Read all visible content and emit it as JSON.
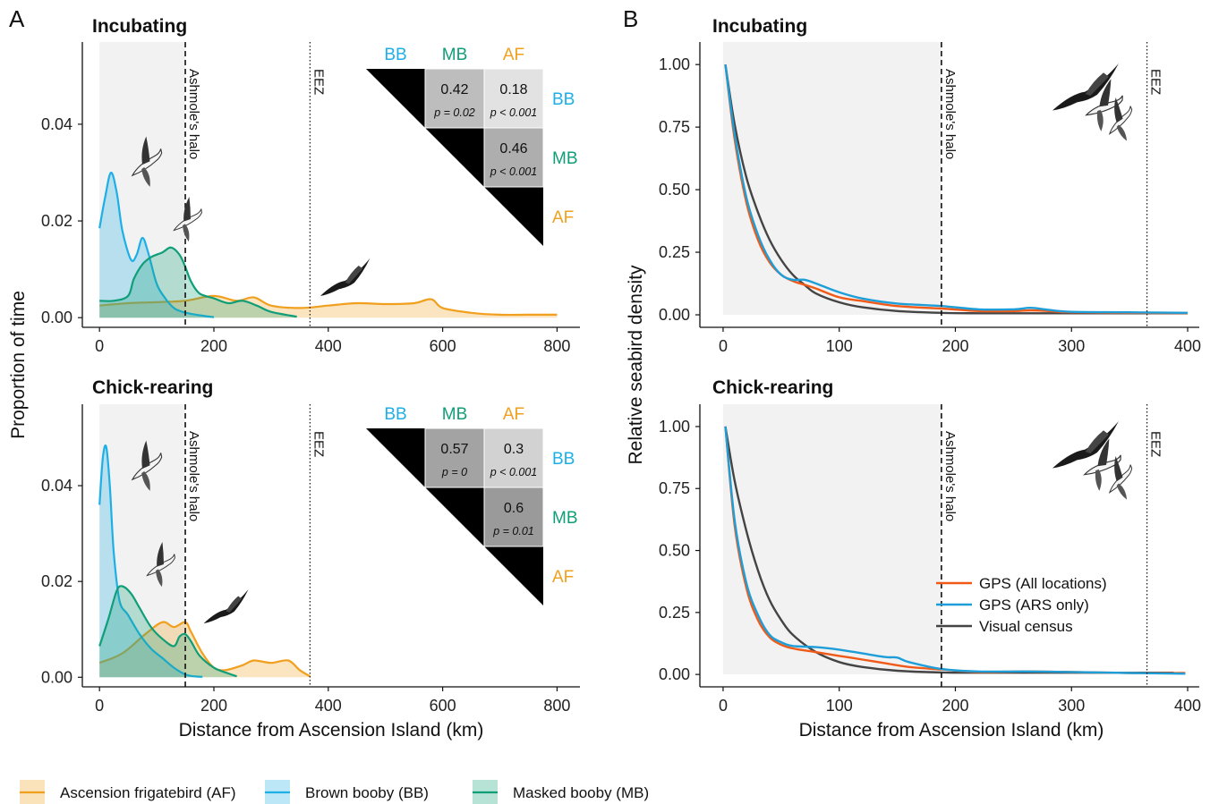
{
  "panel_labels": [
    "A",
    "B"
  ],
  "colors": {
    "AF": "#F0A01E",
    "BB": "#1EAFE6",
    "MB": "#109E78",
    "GPS_all": "#F05A18",
    "GPS_ars": "#1E9ED8",
    "visual": "#444444",
    "shade": "#F2F2F2"
  },
  "legend_bottom": [
    {
      "key": "AF",
      "label": "Ascension frigatebird (AF)"
    },
    {
      "key": "BB",
      "label": "Brown booby (BB)"
    },
    {
      "key": "MB",
      "label": "Masked booby (MB)"
    }
  ],
  "legend_B": [
    {
      "key": "GPS_all",
      "label": "GPS (All locations)"
    },
    {
      "key": "GPS_ars",
      "label": "GPS (ARS only)"
    },
    {
      "key": "visual",
      "label": "Visual census"
    }
  ],
  "chart_data": [
    {
      "id": "A_incubating",
      "type": "area",
      "title": "Incubating",
      "xlabel": "Distance from Ascension Island (km)",
      "ylabel": "Proportion of time",
      "xlim": [
        -30,
        840
      ],
      "ylim": [
        -0.002,
        0.057
      ],
      "xticks": [
        0,
        200,
        400,
        600,
        800
      ],
      "yticks": [
        0,
        0.02,
        0.04
      ],
      "ytick_labels": [
        "0.00",
        "0.02",
        "0.04"
      ],
      "shade": [
        0,
        150
      ],
      "vlines": [
        {
          "x": 150,
          "style": "dashed",
          "label": "Ashmole's halo"
        },
        {
          "x": 368,
          "style": "dotted",
          "label": "EEZ"
        }
      ],
      "series": [
        {
          "key": "AF",
          "name": "Ascension frigatebird (AF)",
          "x": [
            0,
            50,
            100,
            150,
            200,
            240,
            270,
            300,
            350,
            400,
            450,
            500,
            550,
            580,
            600,
            650,
            700,
            750,
            800
          ],
          "y": [
            0.0025,
            0.003,
            0.0032,
            0.0035,
            0.0045,
            0.0035,
            0.0042,
            0.0025,
            0.002,
            0.0025,
            0.003,
            0.0028,
            0.003,
            0.0038,
            0.002,
            0.001,
            0.0006,
            0.0006,
            0.0006
          ]
        },
        {
          "key": "BB",
          "name": "Brown booby (BB)",
          "x": [
            0,
            10,
            20,
            30,
            40,
            55,
            65,
            75,
            85,
            100,
            115,
            130,
            145,
            160,
            180,
            200
          ],
          "y": [
            0.0185,
            0.025,
            0.03,
            0.026,
            0.018,
            0.012,
            0.013,
            0.0165,
            0.0135,
            0.007,
            0.004,
            0.002,
            0.0012,
            0.0008,
            0.0004,
            0.0001
          ]
        },
        {
          "key": "MB",
          "name": "Masked booby (MB)",
          "x": [
            0,
            25,
            50,
            60,
            75,
            90,
            110,
            125,
            140,
            150,
            160,
            175,
            200,
            225,
            250,
            275,
            300,
            345
          ],
          "y": [
            0.0035,
            0.0035,
            0.0045,
            0.008,
            0.011,
            0.0125,
            0.0135,
            0.0145,
            0.013,
            0.0105,
            0.0075,
            0.005,
            0.004,
            0.003,
            0.0035,
            0.0025,
            0.0012,
            0.0002
          ]
        }
      ],
      "matrix": {
        "labels": [
          "BB",
          "MB",
          "AF"
        ],
        "cells": [
          {
            "row": 0,
            "col": 1,
            "value": "0.42",
            "p": "p = 0.02",
            "shade": "#BDBDBD"
          },
          {
            "row": 0,
            "col": 2,
            "value": "0.18",
            "p": "p < 0.001",
            "shade": "#E2E2E2"
          },
          {
            "row": 1,
            "col": 2,
            "value": "0.46",
            "p": "p < 0.001",
            "shade": "#AEAEAE"
          }
        ]
      }
    },
    {
      "id": "A_chick",
      "type": "area",
      "title": "Chick-rearing",
      "xlabel": "Distance from Ascension Island (km)",
      "ylabel": "Proportion of time",
      "xlim": [
        -30,
        840
      ],
      "ylim": [
        -0.002,
        0.057
      ],
      "xticks": [
        0,
        200,
        400,
        600,
        800
      ],
      "yticks": [
        0,
        0.02,
        0.04
      ],
      "ytick_labels": [
        "0.00",
        "0.02",
        "0.04"
      ],
      "shade": [
        0,
        150
      ],
      "vlines": [
        {
          "x": 150,
          "style": "dashed",
          "label": "Ashmole's halo"
        },
        {
          "x": 368,
          "style": "dotted",
          "label": "EEZ"
        }
      ],
      "series": [
        {
          "key": "AF",
          "name": "Ascension frigatebird (AF)",
          "x": [
            0,
            40,
            80,
            110,
            130,
            150,
            160,
            180,
            200,
            220,
            250,
            270,
            300,
            330,
            350,
            368
          ],
          "y": [
            0.003,
            0.005,
            0.009,
            0.0115,
            0.0105,
            0.0115,
            0.0095,
            0.005,
            0.002,
            0.0015,
            0.0025,
            0.0035,
            0.003,
            0.0035,
            0.0015,
            0.0002
          ]
        },
        {
          "key": "BB",
          "name": "Brown booby (BB)",
          "x": [
            0,
            6,
            12,
            18,
            25,
            35,
            50,
            70,
            90,
            110,
            130,
            150,
            165,
            180
          ],
          "y": [
            0.036,
            0.046,
            0.048,
            0.04,
            0.026,
            0.016,
            0.013,
            0.009,
            0.006,
            0.004,
            0.002,
            0.0006,
            0.0002,
            0.0001
          ]
        },
        {
          "key": "MB",
          "name": "Masked booby (MB)",
          "x": [
            0,
            15,
            30,
            40,
            55,
            70,
            90,
            110,
            130,
            140,
            150,
            160,
            175,
            200,
            225,
            240
          ],
          "y": [
            0.0065,
            0.012,
            0.018,
            0.019,
            0.0175,
            0.0145,
            0.0105,
            0.008,
            0.0065,
            0.0085,
            0.009,
            0.0075,
            0.0045,
            0.002,
            0.0008,
            0.0002
          ]
        }
      ],
      "matrix": {
        "labels": [
          "BB",
          "MB",
          "AF"
        ],
        "cells": [
          {
            "row": 0,
            "col": 1,
            "value": "0.57",
            "p": "p = 0",
            "shade": "#A3A3A3"
          },
          {
            "row": 0,
            "col": 2,
            "value": "0.3",
            "p": "p < 0.001",
            "shade": "#D2D2D2"
          },
          {
            "row": 1,
            "col": 2,
            "value": "0.6",
            "p": "p = 0.01",
            "shade": "#9A9A9A"
          }
        ]
      }
    },
    {
      "id": "B_incubating",
      "type": "line",
      "title": "Incubating",
      "xlabel": "Distance from Ascension Island (km)",
      "ylabel": "Relative seabird density",
      "xlim": [
        -20,
        410
      ],
      "ylim": [
        -0.05,
        1.09
      ],
      "xticks": [
        0,
        100,
        200,
        300,
        400
      ],
      "yticks": [
        0,
        0.25,
        0.5,
        0.75,
        1.0
      ],
      "ytick_labels": [
        "0.00",
        "0.25",
        "0.50",
        "0.75",
        "1.00"
      ],
      "shade": [
        0,
        188
      ],
      "vlines": [
        {
          "x": 188,
          "style": "dashed",
          "label": "Ashmole's halo"
        },
        {
          "x": 365,
          "style": "dotted",
          "label": "EEZ"
        }
      ],
      "series": [
        {
          "key": "GPS_all",
          "name": "GPS (All locations)",
          "x": [
            2,
            10,
            20,
            30,
            40,
            50,
            60,
            70,
            80,
            100,
            120,
            150,
            188,
            220,
            250,
            265,
            280,
            300,
            350,
            400
          ],
          "y": [
            1.0,
            0.7,
            0.45,
            0.3,
            0.21,
            0.16,
            0.135,
            0.12,
            0.105,
            0.07,
            0.055,
            0.035,
            0.025,
            0.015,
            0.015,
            0.018,
            0.015,
            0.01,
            0.008,
            0.007
          ]
        },
        {
          "key": "GPS_ars",
          "name": "GPS (ARS only)",
          "x": [
            2,
            10,
            20,
            30,
            40,
            50,
            60,
            70,
            80,
            100,
            120,
            150,
            188,
            220,
            250,
            265,
            280,
            300,
            350,
            400
          ],
          "y": [
            1.0,
            0.72,
            0.47,
            0.32,
            0.22,
            0.16,
            0.14,
            0.14,
            0.125,
            0.09,
            0.065,
            0.045,
            0.035,
            0.022,
            0.022,
            0.028,
            0.02,
            0.012,
            0.01,
            0.008
          ]
        },
        {
          "key": "visual",
          "name": "Visual census",
          "x": [
            2,
            10,
            20,
            30,
            40,
            50,
            60,
            70,
            80,
            100,
            120,
            150,
            188,
            220,
            260,
            300,
            350,
            400
          ],
          "y": [
            1.0,
            0.76,
            0.55,
            0.41,
            0.3,
            0.22,
            0.16,
            0.12,
            0.085,
            0.05,
            0.03,
            0.015,
            0.008,
            0.006,
            0.006,
            0.006,
            0.006,
            0.006
          ]
        }
      ]
    },
    {
      "id": "B_chick",
      "type": "line",
      "title": "Chick-rearing",
      "xlabel": "Distance from Ascension Island (km)",
      "ylabel": "Relative seabird density",
      "xlim": [
        -20,
        410
      ],
      "ylim": [
        -0.05,
        1.09
      ],
      "xticks": [
        0,
        100,
        200,
        300,
        400
      ],
      "yticks": [
        0,
        0.25,
        0.5,
        0.75,
        1.0
      ],
      "ytick_labels": [
        "0.00",
        "0.25",
        "0.50",
        "0.75",
        "1.00"
      ],
      "shade": [
        0,
        188
      ],
      "vlines": [
        {
          "x": 188,
          "style": "dashed",
          "label": "Ashmole's halo"
        },
        {
          "x": 365,
          "style": "dotted",
          "label": "EEZ"
        }
      ],
      "series": [
        {
          "key": "GPS_all",
          "name": "GPS (All locations)",
          "x": [
            2,
            10,
            20,
            30,
            40,
            50,
            60,
            80,
            100,
            120,
            140,
            160,
            188,
            220,
            260,
            300,
            350,
            398
          ],
          "y": [
            1.0,
            0.6,
            0.35,
            0.22,
            0.15,
            0.12,
            0.105,
            0.09,
            0.075,
            0.06,
            0.045,
            0.03,
            0.02,
            0.01,
            0.012,
            0.01,
            0.006,
            0.006
          ]
        },
        {
          "key": "GPS_ars",
          "name": "GPS (ARS only)",
          "x": [
            2,
            10,
            20,
            30,
            40,
            50,
            60,
            80,
            100,
            120,
            140,
            150,
            160,
            188,
            220,
            260,
            300,
            350,
            398
          ],
          "y": [
            1.0,
            0.62,
            0.37,
            0.24,
            0.16,
            0.13,
            0.115,
            0.11,
            0.1,
            0.085,
            0.07,
            0.068,
            0.05,
            0.022,
            0.012,
            0.012,
            0.01,
            0.006,
            0.003
          ]
        },
        {
          "key": "visual",
          "name": "Visual census",
          "x": [
            2,
            10,
            20,
            30,
            40,
            50,
            60,
            80,
            100,
            120,
            150,
            188,
            220,
            260,
            300,
            350,
            388
          ],
          "y": [
            1.0,
            0.78,
            0.58,
            0.42,
            0.3,
            0.22,
            0.16,
            0.09,
            0.05,
            0.03,
            0.015,
            0.008,
            0.007,
            0.007,
            0.007,
            0.007,
            0.007
          ]
        }
      ]
    }
  ]
}
